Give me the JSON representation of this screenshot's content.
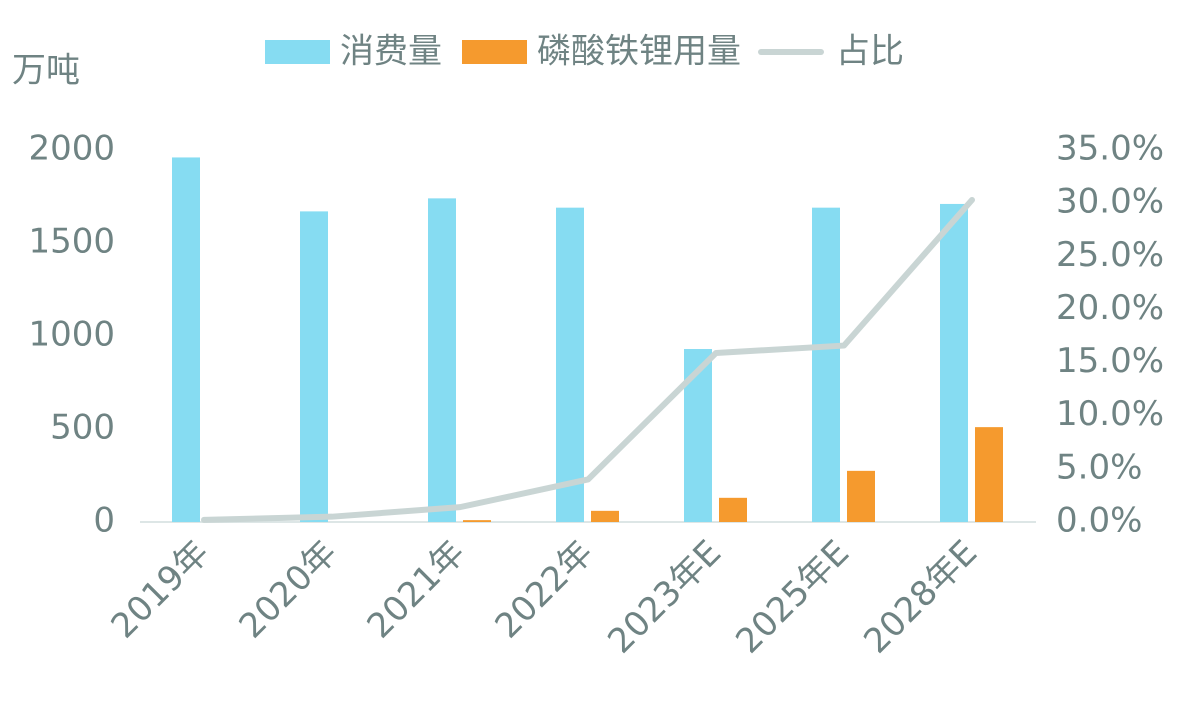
{
  "chart_data": {
    "type": "bar_line",
    "y_label": "万吨",
    "categories": [
      "2019年",
      "2020年",
      "2021年",
      "2022年",
      "2023年E",
      "2025年E",
      "2028年E"
    ],
    "series": [
      {
        "name": "消费量",
        "color": "#86dcf2",
        "type": "bar",
        "values": [
          1960,
          1670,
          1740,
          1690,
          930,
          1690,
          1710
        ]
      },
      {
        "name": "磷酸铁锂用量",
        "color": "#f59a2e",
        "type": "bar",
        "values": [
          0,
          0,
          10,
          60,
          130,
          275,
          510
        ]
      },
      {
        "name": "占比",
        "color": "#c9d5d4",
        "type": "line",
        "axis": "y2",
        "values": [
          0.2,
          0.5,
          1.4,
          4.0,
          15.9,
          16.6,
          30.3
        ]
      }
    ],
    "ylim": [
      0,
      2000
    ],
    "yticks": [
      0,
      500,
      1000,
      1500,
      2000
    ],
    "y2lim": [
      0,
      35
    ],
    "y2ticks": [
      {
        "value": 0,
        "label": "0.0%"
      },
      {
        "value": 5,
        "label": "5.0%"
      },
      {
        "value": 10,
        "label": "10.0%"
      },
      {
        "value": 15,
        "label": "15.0%"
      },
      {
        "value": 20,
        "label": "20.0%"
      },
      {
        "value": 25,
        "label": "25.0%"
      },
      {
        "value": 30,
        "label": "30.0%"
      },
      {
        "value": 35,
        "label": "35.0%"
      }
    ],
    "legend": "top"
  }
}
